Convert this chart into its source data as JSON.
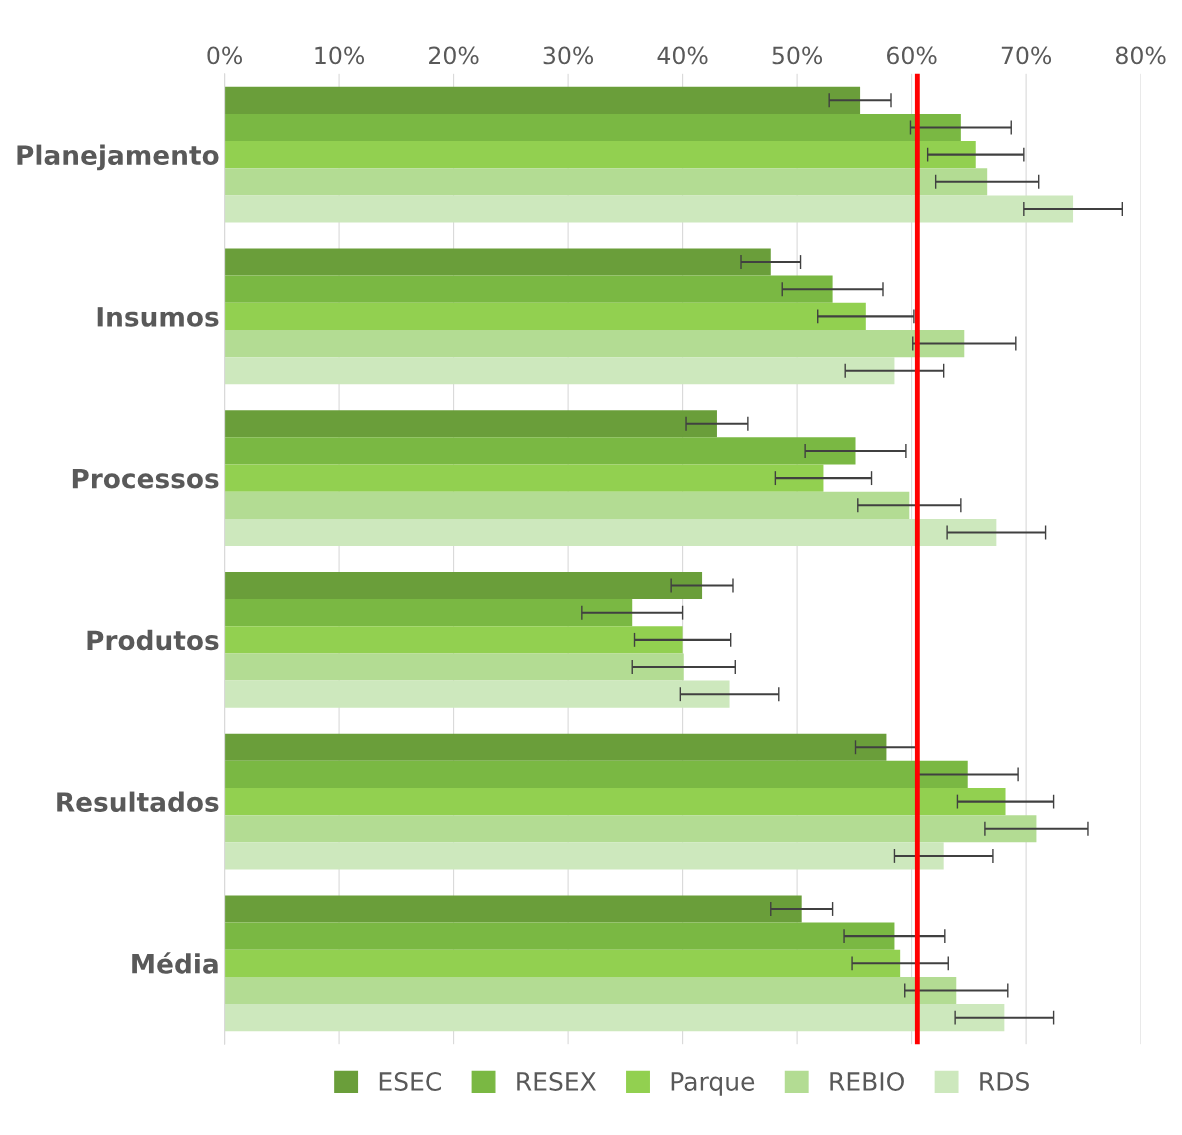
{
  "chart_data": {
    "type": "bar",
    "orientation": "horizontal",
    "categories": [
      "Planejamento",
      "Insumos",
      "Processos",
      "Produtos",
      "Resultados",
      "Média"
    ],
    "series": [
      {
        "name": "ESEC",
        "color": "#6a9e3a",
        "values": [
          55.5,
          47.7,
          43.0,
          41.7,
          57.8,
          50.4
        ],
        "errors": [
          2.7,
          2.6,
          2.7,
          2.7,
          2.7,
          2.7
        ]
      },
      {
        "name": "RESEX",
        "color": "#7ab843",
        "values": [
          64.3,
          53.1,
          55.1,
          35.6,
          64.9,
          58.5
        ],
        "errors": [
          4.4,
          4.4,
          4.4,
          4.4,
          4.4,
          4.4
        ]
      },
      {
        "name": "Parque",
        "color": "#92d050",
        "values": [
          65.6,
          56.0,
          52.3,
          40.0,
          68.2,
          59.0
        ],
        "errors": [
          4.2,
          4.2,
          4.2,
          4.2,
          4.2,
          4.2
        ]
      },
      {
        "name": "REBIO",
        "color": "#b3dc93",
        "values": [
          66.6,
          64.6,
          59.8,
          40.1,
          70.9,
          63.9
        ],
        "errors": [
          4.5,
          4.5,
          4.5,
          4.5,
          4.5,
          4.5
        ]
      },
      {
        "name": "RDS",
        "color": "#cde8bd",
        "values": [
          74.1,
          58.5,
          67.4,
          44.1,
          62.8,
          68.1
        ],
        "errors": [
          4.3,
          4.3,
          4.3,
          4.3,
          4.3,
          4.3
        ]
      }
    ],
    "xlim": [
      0,
      80
    ],
    "xticks": [
      {
        "value": 0,
        "label": "0%"
      },
      {
        "value": 10,
        "label": "10%"
      },
      {
        "value": 20,
        "label": "20%"
      },
      {
        "value": 30,
        "label": "30%"
      },
      {
        "value": 40,
        "label": "40%"
      },
      {
        "value": 50,
        "label": "50%"
      },
      {
        "value": 60,
        "label": "60%"
      },
      {
        "value": 70,
        "label": "70%"
      },
      {
        "value": 80,
        "label": "80%"
      }
    ],
    "ref_lines": [
      {
        "axis": "x",
        "value": 60.5,
        "color": "#ff0000"
      }
    ],
    "grid": "x",
    "legend": "bottom"
  }
}
